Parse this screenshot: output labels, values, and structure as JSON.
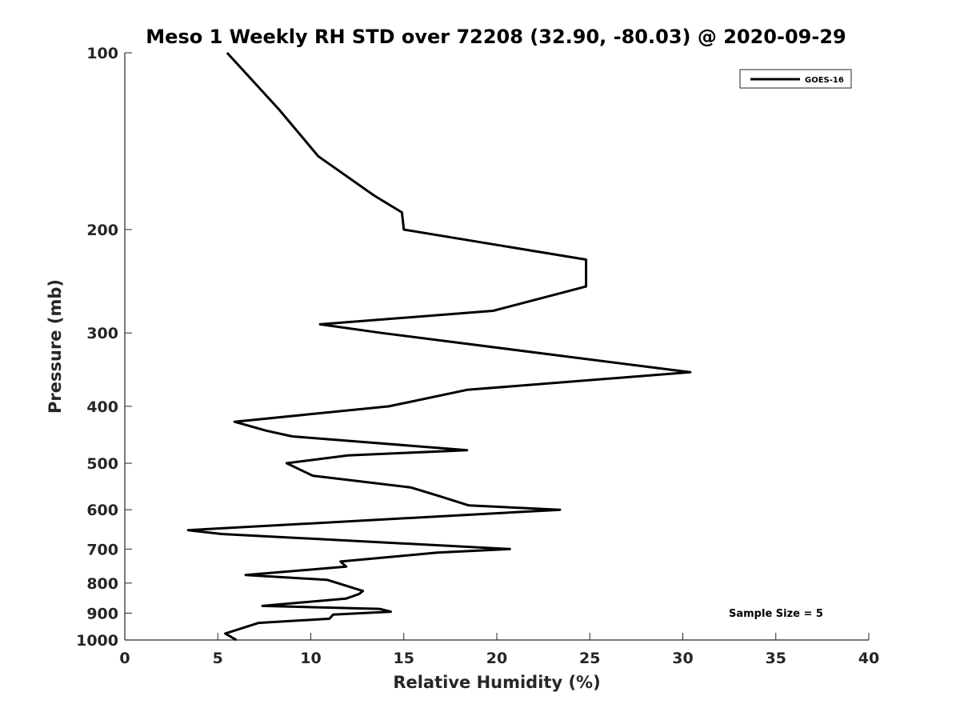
{
  "chart_data": {
    "type": "line",
    "title": "Meso 1 Weekly RH STD over 72208 (32.90, -80.03) @ 2020-09-29",
    "xlabel": "Relative Humidity (%)",
    "ylabel": "Pressure (mb)",
    "xlim": [
      0,
      40
    ],
    "ylim": [
      100,
      1000
    ],
    "y_scale": "log",
    "y_reversed": true,
    "x_ticks": [
      "0",
      "5",
      "10",
      "15",
      "20",
      "25",
      "30",
      "35",
      "40"
    ],
    "y_ticks": [
      "100",
      "200",
      "300",
      "400",
      "500",
      "600",
      "700",
      "800",
      "900",
      "1000"
    ],
    "grid": false,
    "legend_placement": "top-right",
    "annotation": "Sample Size = 5",
    "series": [
      {
        "name": "GOES-16",
        "color": "#000000",
        "points": [
          [
            5.5,
            100
          ],
          [
            8.3,
            125
          ],
          [
            10.4,
            150
          ],
          [
            13.4,
            175
          ],
          [
            14.9,
            187
          ],
          [
            15.0,
            200
          ],
          [
            24.8,
            225
          ],
          [
            24.8,
            250
          ],
          [
            19.8,
            275
          ],
          [
            10.5,
            290
          ],
          [
            13.8,
            300
          ],
          [
            30.4,
            350
          ],
          [
            18.4,
            375
          ],
          [
            14.2,
            400
          ],
          [
            5.9,
            425
          ],
          [
            7.6,
            440
          ],
          [
            9.0,
            450
          ],
          [
            18.4,
            475
          ],
          [
            12.0,
            485
          ],
          [
            8.7,
            500
          ],
          [
            10.1,
            525
          ],
          [
            15.4,
            550
          ],
          [
            17.0,
            570
          ],
          [
            18.5,
            590
          ],
          [
            23.4,
            600
          ],
          [
            3.4,
            650
          ],
          [
            5.2,
            660
          ],
          [
            20.7,
            700
          ],
          [
            16.8,
            710
          ],
          [
            11.6,
            735
          ],
          [
            11.9,
            750
          ],
          [
            6.5,
            775
          ],
          [
            10.9,
            790
          ],
          [
            12.8,
            825
          ],
          [
            12.6,
            835
          ],
          [
            11.9,
            850
          ],
          [
            7.4,
            875
          ],
          [
            13.7,
            885
          ],
          [
            14.3,
            895
          ],
          [
            11.2,
            905
          ],
          [
            11.0,
            920
          ],
          [
            7.2,
            935
          ],
          [
            5.4,
            975
          ],
          [
            6.0,
            1000
          ]
        ]
      }
    ]
  }
}
